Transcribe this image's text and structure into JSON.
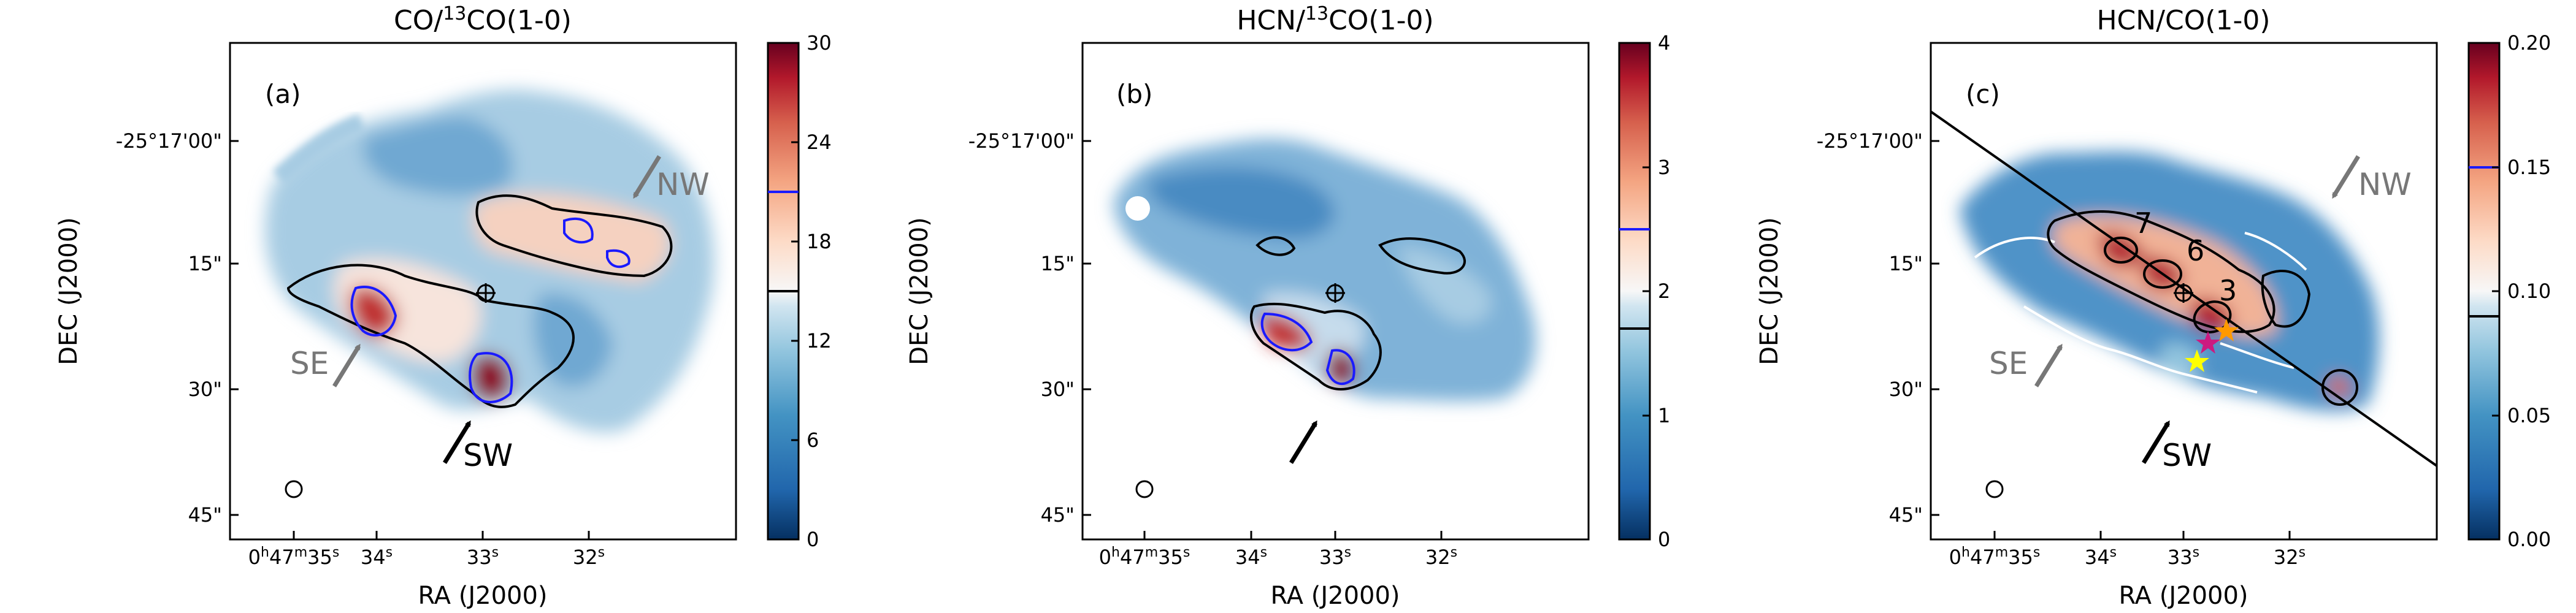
{
  "chart_data": [
    {
      "type": "heatmap",
      "title": {
        "pre": "CO/",
        "sup": "13",
        "post": "CO(1-0)"
      },
      "panel_label": "(a)",
      "xlabel": "RA (J2000)",
      "ylabel": "DEC (J2000)",
      "x_ticks": [
        {
          "h": "0",
          "m": "47",
          "s": "35"
        },
        {
          "s": "34"
        },
        {
          "s": "33"
        },
        {
          "s": "32"
        }
      ],
      "y_ticks": [
        "-25°17'00\"",
        "15\"",
        "30\"",
        "45\""
      ],
      "colorbar": {
        "min": 0,
        "max": 30,
        "ticks": [
          "0",
          "6",
          "12",
          "18",
          "24",
          "30"
        ],
        "black_level": 15,
        "blue_level": 21
      },
      "arrows": [
        {
          "label": "NW",
          "color": "#777777"
        },
        {
          "label": "SE",
          "color": "#777777"
        },
        {
          "label": "SW",
          "color": "#000000"
        }
      ],
      "colormap": "RdBu_r",
      "beam": true,
      "center_marker": true
    },
    {
      "type": "heatmap",
      "title": {
        "pre": "HCN/",
        "sup": "13",
        "post": "CO(1-0)"
      },
      "panel_label": "(b)",
      "xlabel": "RA (J2000)",
      "ylabel": "DEC (J2000)",
      "x_ticks": [
        {
          "h": "0",
          "m": "47",
          "s": "35"
        },
        {
          "s": "34"
        },
        {
          "s": "33"
        },
        {
          "s": "32"
        }
      ],
      "y_ticks": [
        "-25°17'00\"",
        "15\"",
        "30\"",
        "45\""
      ],
      "colorbar": {
        "min": 0,
        "max": 4,
        "ticks": [
          "0",
          "1",
          "2",
          "3",
          "4"
        ],
        "black_level": 1.7,
        "blue_level": 2.5
      },
      "arrows": [
        {
          "label": "",
          "color": "#000000"
        }
      ],
      "colormap": "RdBu_r",
      "beam": true,
      "center_marker": true
    },
    {
      "type": "heatmap",
      "title": {
        "pre": "HCN/CO(1-0)",
        "sup": "",
        "post": ""
      },
      "panel_label": "(c)",
      "xlabel": "RA (J2000)",
      "ylabel": "DEC (J2000)",
      "x_ticks": [
        {
          "h": "0",
          "m": "47",
          "s": "35"
        },
        {
          "s": "34"
        },
        {
          "s": "33"
        },
        {
          "s": "32"
        }
      ],
      "y_ticks": [
        "-25°17'00\"",
        "15\"",
        "30\"",
        "45\""
      ],
      "colorbar": {
        "min": 0,
        "max": 0.2,
        "ticks": [
          "0.00",
          "0.05",
          "0.10",
          "0.15",
          "0.20"
        ],
        "black_level": 0.09,
        "blue_level": 0.15
      },
      "arrows": [
        {
          "label": "NW",
          "color": "#777777"
        },
        {
          "label": "SE",
          "color": "#777777"
        },
        {
          "label": "SW",
          "color": "#000000"
        }
      ],
      "region_labels": [
        "7",
        "6",
        "3"
      ],
      "colormap": "RdBu_r",
      "beam": true,
      "center_marker": true,
      "major_axis_line": true
    }
  ],
  "colors": {
    "map_low": "#0b3c80",
    "map_mid": "#f5f5f5",
    "map_high": "#67001f",
    "black_contour": "#000000",
    "blue_contour": "#1a1aff",
    "white_contour": "#ffffff",
    "star_orange": "#ff9900",
    "star_magenta": "#cc1a80",
    "star_yellow": "#ffff00",
    "arrow_gray": "#777777"
  }
}
